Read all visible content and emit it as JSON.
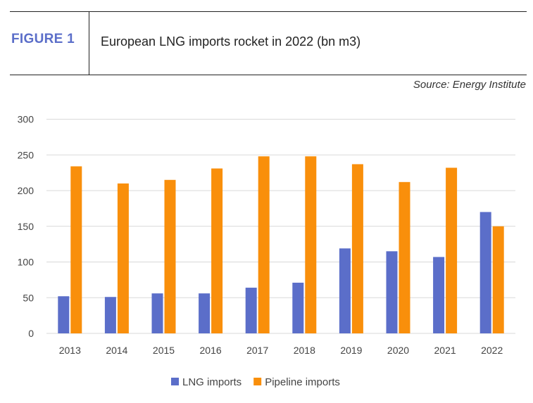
{
  "header": {
    "figure_label": "FIGURE 1",
    "title": "European LNG imports rocket in 2022 (bn m3)",
    "source": "Source: Energy Institute"
  },
  "chart_data": {
    "type": "bar",
    "title": "European LNG imports rocket in 2022 (bn m3)",
    "categories": [
      "2013",
      "2014",
      "2015",
      "2016",
      "2017",
      "2018",
      "2019",
      "2020",
      "2021",
      "2022"
    ],
    "series": [
      {
        "name": "LNG imports",
        "color": "#5b6ec9",
        "values": [
          52,
          51,
          56,
          56,
          64,
          71,
          119,
          115,
          107,
          170
        ]
      },
      {
        "name": "Pipeline imports",
        "color": "#f98f0b",
        "values": [
          234,
          210,
          215,
          231,
          248,
          248,
          237,
          212,
          232,
          150
        ]
      }
    ],
    "ylim": [
      0,
      300
    ],
    "yticks": [
      0,
      50,
      100,
      150,
      200,
      250,
      300
    ],
    "grid": true,
    "legend": "bottom"
  }
}
